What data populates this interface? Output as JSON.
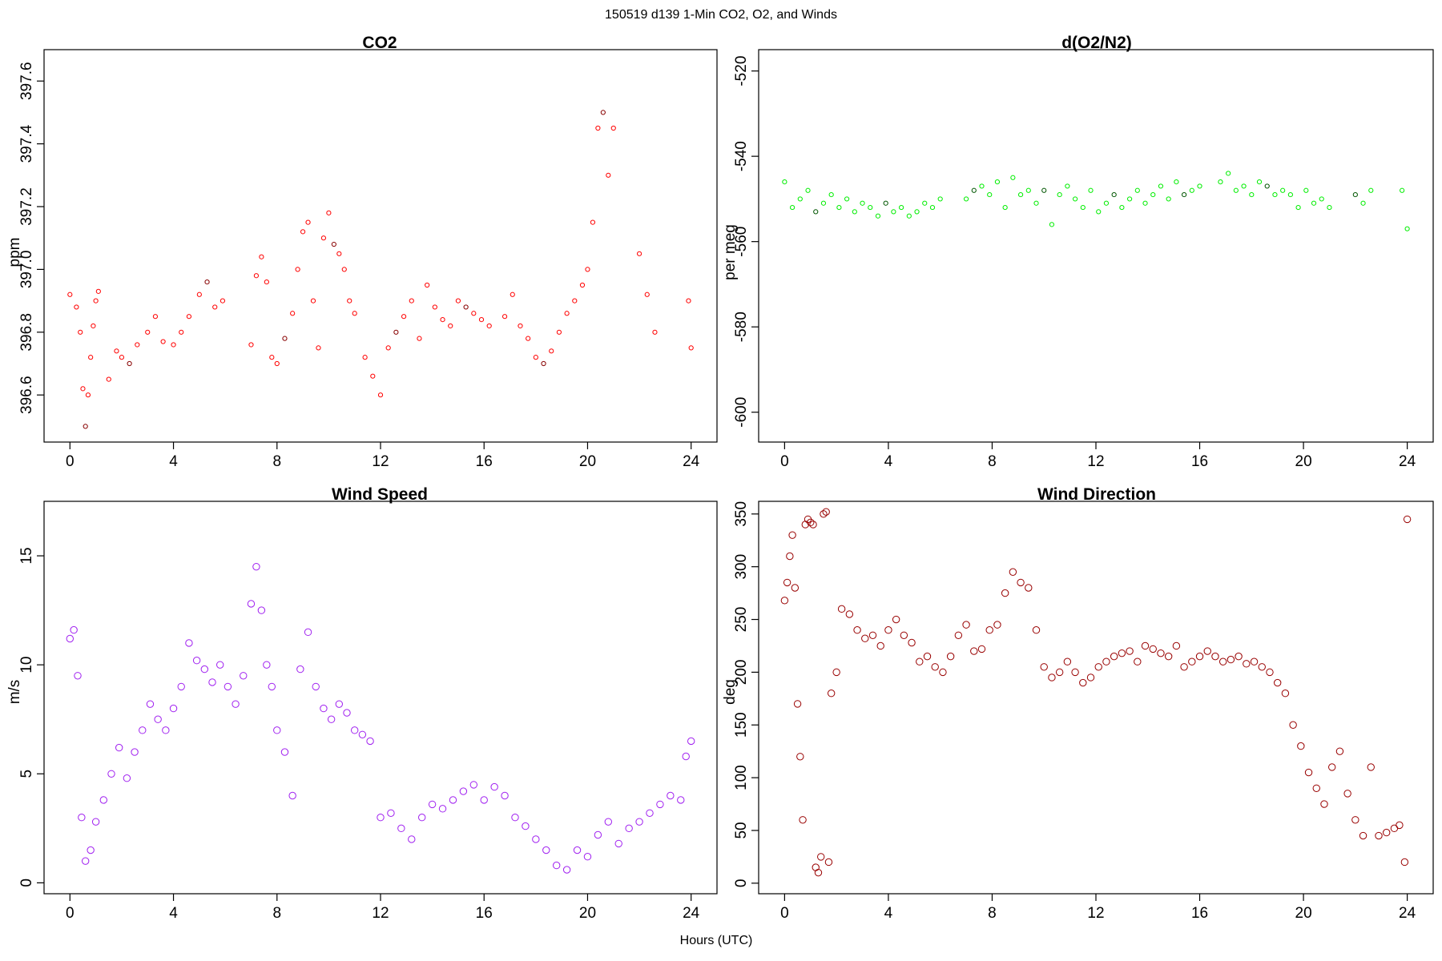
{
  "figure": {
    "suptitle": "150519   d139   1-Min CO2, O2, and Winds",
    "xlabel": "Hours (UTC)"
  },
  "chart_data": [
    {
      "type": "scatter",
      "title": "CO2",
      "ylabel": "ppm",
      "xlim": [
        -1,
        25
      ],
      "ylim": [
        396.45,
        397.7
      ],
      "xticks": [
        0,
        4,
        8,
        12,
        16,
        20,
        24
      ],
      "yticks": [
        396.6,
        396.8,
        397.0,
        397.2,
        397.4,
        397.6
      ],
      "ytick_labels": [
        "396.6",
        "396.8",
        "397.0",
        "397.2",
        "397.4",
        "397.6"
      ],
      "color": "#ff0000",
      "accent_color": "#880000",
      "marker_size": 2.6,
      "x": [
        0.0,
        0.25,
        0.4,
        0.5,
        0.6,
        0.7,
        0.8,
        0.9,
        1.0,
        1.1,
        1.5,
        1.8,
        2.0,
        2.3,
        2.6,
        3.0,
        3.3,
        3.6,
        4.0,
        4.3,
        4.6,
        5.0,
        5.3,
        5.6,
        5.9,
        7.0,
        7.2,
        7.4,
        7.6,
        7.8,
        8.0,
        8.3,
        8.6,
        8.8,
        9.0,
        9.2,
        9.4,
        9.6,
        9.8,
        10.0,
        10.2,
        10.4,
        10.6,
        10.8,
        11.0,
        11.4,
        11.7,
        12.0,
        12.3,
        12.6,
        12.9,
        13.2,
        13.5,
        13.8,
        14.1,
        14.4,
        14.7,
        15.0,
        15.3,
        15.6,
        15.9,
        16.2,
        16.8,
        17.1,
        17.4,
        17.7,
        18.0,
        18.3,
        18.6,
        18.9,
        19.2,
        19.5,
        19.8,
        20.0,
        20.2,
        20.4,
        20.6,
        20.8,
        21.0,
        22.0,
        22.3,
        22.6,
        23.9,
        24.0
      ],
      "y": [
        396.92,
        396.88,
        396.8,
        396.62,
        396.5,
        396.6,
        396.72,
        396.82,
        396.9,
        396.93,
        396.65,
        396.74,
        396.72,
        396.7,
        396.76,
        396.8,
        396.85,
        396.77,
        396.76,
        396.8,
        396.85,
        396.92,
        396.96,
        396.88,
        396.9,
        396.76,
        396.98,
        397.04,
        396.96,
        396.72,
        396.7,
        396.78,
        396.86,
        397.0,
        397.12,
        397.15,
        396.9,
        396.75,
        397.1,
        397.18,
        397.08,
        397.05,
        397.0,
        396.9,
        396.86,
        396.72,
        396.66,
        396.6,
        396.75,
        396.8,
        396.85,
        396.9,
        396.78,
        396.95,
        396.88,
        396.84,
        396.82,
        396.9,
        396.88,
        396.86,
        396.84,
        396.82,
        396.85,
        396.92,
        396.82,
        396.78,
        396.72,
        396.7,
        396.74,
        396.8,
        396.86,
        396.9,
        396.95,
        397.0,
        397.15,
        397.45,
        397.5,
        397.3,
        397.45,
        397.05,
        396.92,
        396.8,
        396.9,
        396.75
      ]
    },
    {
      "type": "scatter",
      "title": "d(O2/N2)",
      "ylabel": "per meg",
      "xlim": [
        -1,
        25
      ],
      "ylim": [
        -607,
        -515
      ],
      "xticks": [
        0,
        4,
        8,
        12,
        16,
        20,
        24
      ],
      "yticks": [
        -600,
        -580,
        -560,
        -540,
        -520
      ],
      "ytick_labels": [
        "-600",
        "-580",
        "-560",
        "-540",
        "-520"
      ],
      "color": "#00ee00",
      "accent_color": "#005500",
      "marker_size": 2.6,
      "x": [
        0.0,
        0.3,
        0.6,
        0.9,
        1.2,
        1.5,
        1.8,
        2.1,
        2.4,
        2.7,
        3.0,
        3.3,
        3.6,
        3.9,
        4.2,
        4.5,
        4.8,
        5.1,
        5.4,
        5.7,
        6.0,
        7.0,
        7.3,
        7.6,
        7.9,
        8.2,
        8.5,
        8.8,
        9.1,
        9.4,
        9.7,
        10.0,
        10.3,
        10.6,
        10.9,
        11.2,
        11.5,
        11.8,
        12.1,
        12.4,
        12.7,
        13.0,
        13.3,
        13.6,
        13.9,
        14.2,
        14.5,
        14.8,
        15.1,
        15.4,
        15.7,
        16.0,
        16.8,
        17.1,
        17.4,
        17.7,
        18.0,
        18.3,
        18.6,
        18.9,
        19.2,
        19.5,
        19.8,
        20.1,
        20.4,
        20.7,
        21.0,
        22.0,
        22.3,
        22.6,
        23.8,
        24.0
      ],
      "y": [
        -546,
        -552,
        -550,
        -548,
        -553,
        -551,
        -549,
        -552,
        -550,
        -553,
        -551,
        -552,
        -554,
        -551,
        -553,
        -552,
        -554,
        -553,
        -551,
        -552,
        -550,
        -550,
        -548,
        -547,
        -549,
        -546,
        -552,
        -545,
        -549,
        -548,
        -551,
        -548,
        -556,
        -549,
        -547,
        -550,
        -552,
        -548,
        -553,
        -551,
        -549,
        -552,
        -550,
        -548,
        -551,
        -549,
        -547,
        -550,
        -546,
        -549,
        -548,
        -547,
        -546,
        -544,
        -548,
        -547,
        -549,
        -546,
        -547,
        -549,
        -548,
        -549,
        -552,
        -548,
        -551,
        -550,
        -552,
        -549,
        -551,
        -548,
        -548,
        -557
      ]
    },
    {
      "type": "scatter",
      "title": "Wind Speed",
      "ylabel": "m/s",
      "xlim": [
        -1,
        25
      ],
      "ylim": [
        -0.5,
        17.5
      ],
      "xticks": [
        0,
        4,
        8,
        12,
        16,
        20,
        24
      ],
      "yticks": [
        0,
        5,
        10,
        15
      ],
      "ytick_labels": [
        "0",
        "5",
        "10",
        "15"
      ],
      "color": "#a020f0",
      "marker_size": 4.2,
      "x": [
        0.0,
        0.15,
        0.3,
        0.45,
        0.6,
        0.8,
        1.0,
        1.3,
        1.6,
        1.9,
        2.2,
        2.5,
        2.8,
        3.1,
        3.4,
        3.7,
        4.0,
        4.3,
        4.6,
        4.9,
        5.2,
        5.5,
        5.8,
        6.1,
        6.4,
        6.7,
        7.0,
        7.2,
        7.4,
        7.6,
        7.8,
        8.0,
        8.3,
        8.6,
        8.9,
        9.2,
        9.5,
        9.8,
        10.1,
        10.4,
        10.7,
        11.0,
        11.3,
        11.6,
        12.0,
        12.4,
        12.8,
        13.2,
        13.6,
        14.0,
        14.4,
        14.8,
        15.2,
        15.6,
        16.0,
        16.4,
        16.8,
        17.2,
        17.6,
        18.0,
        18.4,
        18.8,
        19.2,
        19.6,
        20.0,
        20.4,
        20.8,
        21.2,
        21.6,
        22.0,
        22.4,
        22.8,
        23.2,
        23.6,
        23.8,
        24.0
      ],
      "y": [
        11.2,
        11.6,
        9.5,
        3.0,
        1.0,
        1.5,
        2.8,
        3.8,
        5.0,
        6.2,
        4.8,
        6.0,
        7.0,
        8.2,
        7.5,
        7.0,
        8.0,
        9.0,
        11.0,
        10.2,
        9.8,
        9.2,
        10.0,
        9.0,
        8.2,
        9.5,
        12.8,
        14.5,
        12.5,
        10.0,
        9.0,
        7.0,
        6.0,
        4.0,
        9.8,
        11.5,
        9.0,
        8.0,
        7.5,
        8.2,
        7.8,
        7.0,
        6.8,
        6.5,
        3.0,
        3.2,
        2.5,
        2.0,
        3.0,
        3.6,
        3.4,
        3.8,
        4.2,
        4.5,
        3.8,
        4.4,
        4.0,
        3.0,
        2.6,
        2.0,
        1.5,
        0.8,
        0.6,
        1.5,
        1.2,
        2.2,
        2.8,
        1.8,
        2.5,
        2.8,
        3.2,
        3.6,
        4.0,
        3.8,
        5.8,
        6.5
      ]
    },
    {
      "type": "scatter",
      "title": "Wind Direction",
      "ylabel": "deg",
      "xlim": [
        -1,
        25
      ],
      "ylim": [
        -10,
        362
      ],
      "xticks": [
        0,
        4,
        8,
        12,
        16,
        20,
        24
      ],
      "yticks": [
        0,
        50,
        100,
        150,
        200,
        250,
        300,
        350
      ],
      "ytick_labels": [
        "0",
        "50",
        "100",
        "150",
        "200",
        "250",
        "300",
        "350"
      ],
      "color": "#990000",
      "marker_size": 4.2,
      "x": [
        0.0,
        0.1,
        0.2,
        0.3,
        0.4,
        0.5,
        0.6,
        0.7,
        0.8,
        0.9,
        1.0,
        1.1,
        1.2,
        1.3,
        1.4,
        1.5,
        1.6,
        1.7,
        1.8,
        2.0,
        2.2,
        2.5,
        2.8,
        3.1,
        3.4,
        3.7,
        4.0,
        4.3,
        4.6,
        4.9,
        5.2,
        5.5,
        5.8,
        6.1,
        6.4,
        6.7,
        7.0,
        7.3,
        7.6,
        7.9,
        8.2,
        8.5,
        8.8,
        9.1,
        9.4,
        9.7,
        10.0,
        10.3,
        10.6,
        10.9,
        11.2,
        11.5,
        11.8,
        12.1,
        12.4,
        12.7,
        13.0,
        13.3,
        13.6,
        13.9,
        14.2,
        14.5,
        14.8,
        15.1,
        15.4,
        15.7,
        16.0,
        16.3,
        16.6,
        16.9,
        17.2,
        17.5,
        17.8,
        18.1,
        18.4,
        18.7,
        19.0,
        19.3,
        19.6,
        19.9,
        20.2,
        20.5,
        20.8,
        21.1,
        21.4,
        21.7,
        22.0,
        22.3,
        22.6,
        22.9,
        23.2,
        23.5,
        23.7,
        23.9,
        24.0
      ],
      "y": [
        268,
        285,
        310,
        330,
        280,
        170,
        120,
        60,
        340,
        345,
        342,
        340,
        15,
        10,
        25,
        350,
        352,
        20,
        180,
        200,
        260,
        255,
        240,
        232,
        235,
        225,
        240,
        250,
        235,
        228,
        210,
        215,
        205,
        200,
        215,
        235,
        245,
        220,
        222,
        240,
        245,
        275,
        295,
        285,
        280,
        240,
        205,
        195,
        200,
        210,
        200,
        190,
        195,
        205,
        210,
        215,
        218,
        220,
        210,
        225,
        222,
        218,
        215,
        225,
        205,
        210,
        215,
        220,
        215,
        210,
        212,
        215,
        208,
        210,
        205,
        200,
        190,
        180,
        150,
        130,
        105,
        90,
        75,
        110,
        125,
        85,
        60,
        45,
        110,
        45,
        48,
        52,
        55,
        20,
        345
      ]
    }
  ]
}
